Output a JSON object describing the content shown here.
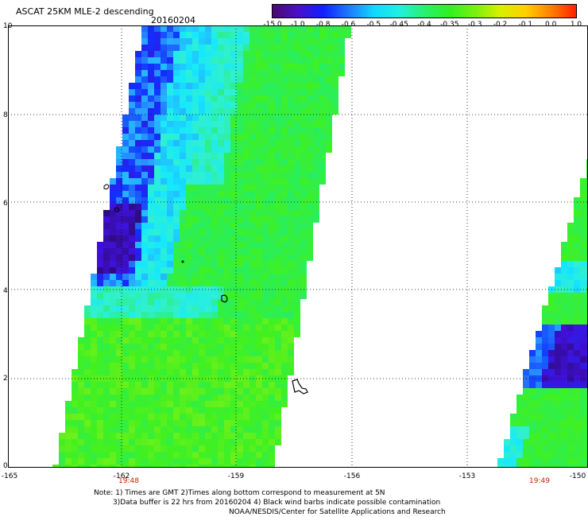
{
  "header": {
    "title": "ASCAT 25KM MLE-2 descending",
    "date": "20160204"
  },
  "colorbar": {
    "labels": [
      "-15.0",
      "-1.0",
      "-0.8",
      "-0.6",
      "-0.5",
      "-0.45",
      "-0.4",
      "-0.35",
      "-0.3",
      "-0.2",
      "-0.1",
      "0.0",
      "1.0"
    ],
    "colors": [
      "#4b0a6e",
      "#4a10c8",
      "#1020ff",
      "#1e78ff",
      "#10d8ff",
      "#20f0e0",
      "#28f070",
      "#30f020",
      "#78f010",
      "#d8f000",
      "#ffd000",
      "#ff8000",
      "#ff2000"
    ]
  },
  "axes": {
    "y_ticks": [
      "0",
      "2",
      "4",
      "6",
      "8",
      "10"
    ],
    "x_ticks": [
      "-165",
      "-162",
      "-159",
      "-156",
      "-153",
      "-150"
    ]
  },
  "times": [
    "19:48",
    "19:49"
  ],
  "notes": {
    "line1": "Note: 1) Times are GMT 2)Times along bottom correspond to measurement at 5N",
    "line2": "3)Data buffer is 22 hrs from 20160204 4) Black wind barbs indicate possible contamination",
    "line3": "NOAA/NESDIS/Center for Satellite Applications and Research"
  }
}
